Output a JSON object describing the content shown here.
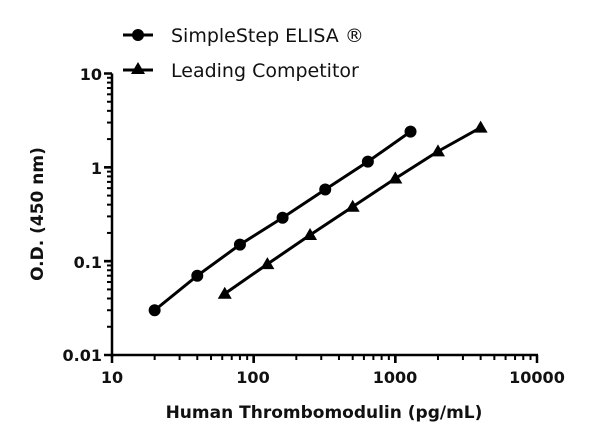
{
  "chart_data": {
    "type": "line",
    "title": "",
    "xlabel": "Human Thrombomodulin (pg/mL)",
    "ylabel": "O.D. (450 nm)",
    "xscale": "log",
    "yscale": "log",
    "xlim": [
      10,
      10000
    ],
    "ylim": [
      0.01,
      10
    ],
    "x_tick_labels": [
      "10",
      "100",
      "1000",
      "10000"
    ],
    "y_tick_labels": [
      "0.01",
      "0.1",
      "1",
      "10"
    ],
    "grid": false,
    "legend_position": "top-left",
    "series": [
      {
        "name": "SimpleStep ELISA ®",
        "marker": "circle",
        "x": [
          20,
          40,
          80,
          160,
          320,
          640,
          1280
        ],
        "y": [
          0.03,
          0.07,
          0.15,
          0.29,
          0.58,
          1.15,
          2.4
        ]
      },
      {
        "name": "Leading Competitor",
        "marker": "triangle",
        "x": [
          62.5,
          125,
          250,
          500,
          1000,
          2000,
          4000
        ],
        "y": [
          0.045,
          0.093,
          0.19,
          0.38,
          0.76,
          1.48,
          2.65
        ]
      }
    ]
  },
  "legend": {
    "items": [
      {
        "label": "SimpleStep ELISA ®",
        "marker": "circle"
      },
      {
        "label": "Leading Competitor",
        "marker": "triangle"
      }
    ]
  },
  "axes": {
    "x_title": "Human Thrombomodulin (pg/mL)",
    "y_title": "O.D. (450 nm)",
    "x_ticks": [
      "10",
      "100",
      "1000",
      "10000"
    ],
    "y_ticks": [
      "10",
      "1",
      "0.1",
      "0.01"
    ]
  },
  "colors": {
    "line": "#000000",
    "background": "#ffffff"
  }
}
